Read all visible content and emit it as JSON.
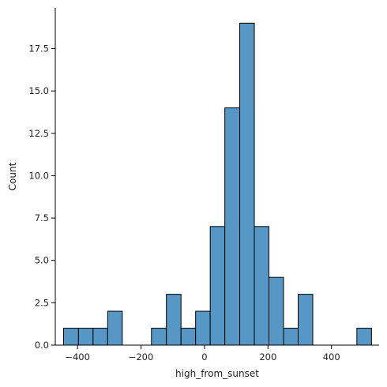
{
  "chart_data": {
    "type": "bar",
    "subtype": "histogram",
    "xlabel": "high_from_sunset",
    "ylabel": "Count",
    "xlim": [
      -470,
      550
    ],
    "ylim": [
      0,
      19.9
    ],
    "x_ticks": [
      -400,
      -200,
      0,
      200,
      400
    ],
    "x_tick_labels": [
      "−400",
      "−200",
      "0",
      "200",
      "400"
    ],
    "y_ticks": [
      0,
      2.5,
      5,
      7.5,
      10,
      12.5,
      15,
      17.5
    ],
    "y_tick_labels": [
      "0.0",
      "2.5",
      "5.0",
      "7.5",
      "10.0",
      "12.5",
      "15.0",
      "17.5"
    ],
    "grid": false,
    "bar_color": "#5797c6",
    "edge_color": "#000000",
    "bins": [
      {
        "x0": -444,
        "x1": -397,
        "count": 1
      },
      {
        "x0": -397,
        "x1": -351,
        "count": 1
      },
      {
        "x0": -351,
        "x1": -305,
        "count": 1
      },
      {
        "x0": -305,
        "x1": -259,
        "count": 2
      },
      {
        "x0": -259,
        "x1": -213,
        "count": 0
      },
      {
        "x0": -213,
        "x1": -167,
        "count": 0
      },
      {
        "x0": -167,
        "x1": -120,
        "count": 1
      },
      {
        "x0": -120,
        "x1": -74,
        "count": 3
      },
      {
        "x0": -74,
        "x1": -28,
        "count": 1
      },
      {
        "x0": -28,
        "x1": 18,
        "count": 2
      },
      {
        "x0": 18,
        "x1": 64,
        "count": 7
      },
      {
        "x0": 64,
        "x1": 111,
        "count": 14
      },
      {
        "x0": 111,
        "x1": 157,
        "count": 19
      },
      {
        "x0": 157,
        "x1": 203,
        "count": 7
      },
      {
        "x0": 203,
        "x1": 249,
        "count": 4
      },
      {
        "x0": 249,
        "x1": 295,
        "count": 1
      },
      {
        "x0": 295,
        "x1": 341,
        "count": 3
      },
      {
        "x0": 341,
        "x1": 388,
        "count": 0
      },
      {
        "x0": 388,
        "x1": 434,
        "count": 0
      },
      {
        "x0": 434,
        "x1": 480,
        "count": 0
      },
      {
        "x0": 480,
        "x1": 526,
        "count": 1
      }
    ]
  }
}
